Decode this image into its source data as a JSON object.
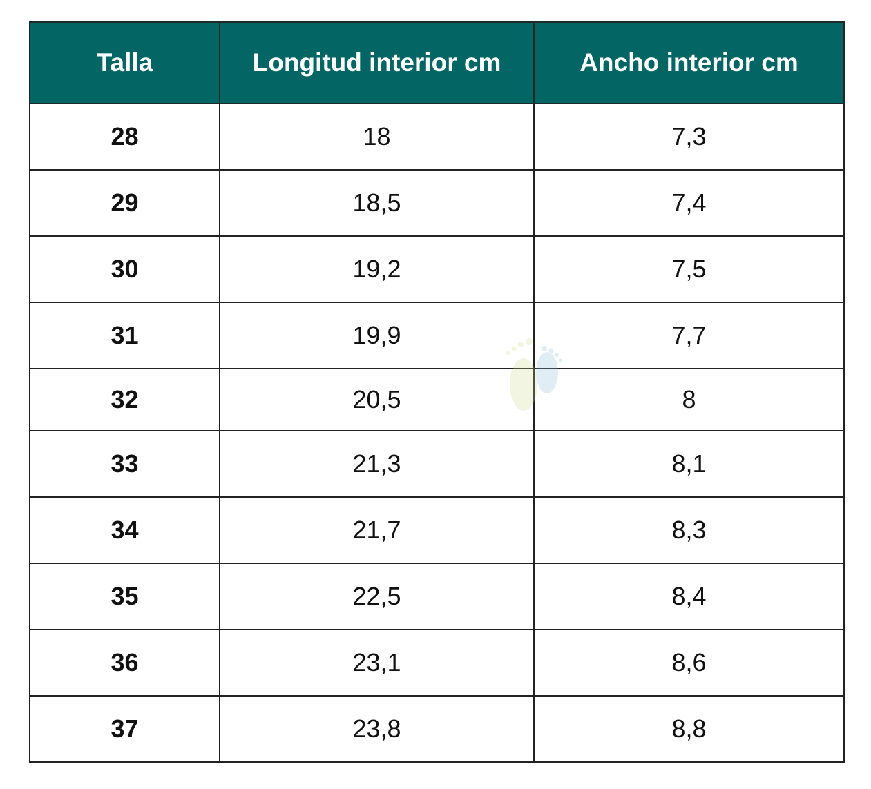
{
  "table": {
    "header": [
      "Talla",
      "Longitud interior cm",
      "Ancho interior cm"
    ],
    "rows": [
      [
        "28",
        "18",
        "7,3"
      ],
      [
        "29",
        "18,5",
        "7,4"
      ],
      [
        "30",
        "19,2",
        "7,5"
      ],
      [
        "31",
        "19,9",
        "7,7"
      ],
      [
        "32",
        "20,5",
        "8"
      ],
      [
        "33",
        "21,3",
        "8,1"
      ],
      [
        "34",
        "21,7",
        "8,3"
      ],
      [
        "35",
        "22,5",
        "8,4"
      ],
      [
        "36",
        "23,1",
        "8,6"
      ],
      [
        "37",
        "23,8",
        "8,8"
      ]
    ]
  }
}
